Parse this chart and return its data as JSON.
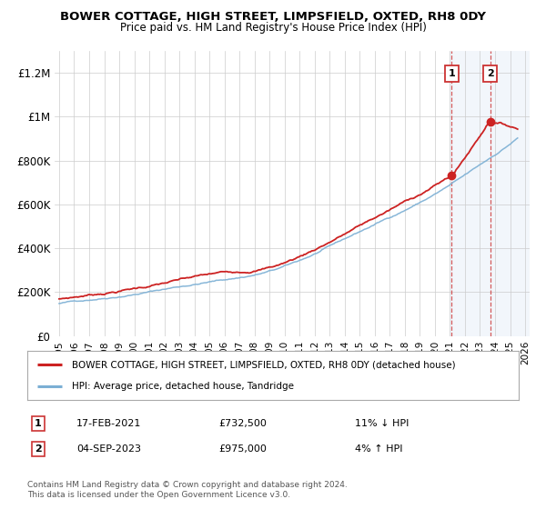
{
  "title": "BOWER COTTAGE, HIGH STREET, LIMPSFIELD, OXTED, RH8 0DY",
  "subtitle": "Price paid vs. HM Land Registry's House Price Index (HPI)",
  "ylabel_ticks": [
    "£0",
    "£200K",
    "£400K",
    "£600K",
    "£800K",
    "£1M",
    "£1.2M"
  ],
  "ytick_values": [
    0,
    200000,
    400000,
    600000,
    800000,
    1000000,
    1200000
  ],
  "ylim": [
    0,
    1300000
  ],
  "xlim_start": 1994.7,
  "xlim_end": 2026.3,
  "hpi_color": "#7bafd4",
  "price_color": "#cc2222",
  "marker1_x": 2021.12,
  "marker1_y": 732500,
  "marker1_label": "1",
  "marker2_x": 2023.67,
  "marker2_y": 975000,
  "marker2_label": "2",
  "legend_line1": "BOWER COTTAGE, HIGH STREET, LIMPSFIELD, OXTED, RH8 0DY (detached house)",
  "legend_line2": "HPI: Average price, detached house, Tandridge",
  "table_row1_num": "1",
  "table_row1_date": "17-FEB-2021",
  "table_row1_price": "£732,500",
  "table_row1_hpi": "11% ↓ HPI",
  "table_row2_num": "2",
  "table_row2_date": "04-SEP-2023",
  "table_row2_price": "£975,000",
  "table_row2_hpi": "4% ↑ HPI",
  "footer": "Contains HM Land Registry data © Crown copyright and database right 2024.\nThis data is licensed under the Open Government Licence v3.0.",
  "background_color": "#ffffff",
  "shade_start": 2021.0,
  "shade_end": 2026.3
}
